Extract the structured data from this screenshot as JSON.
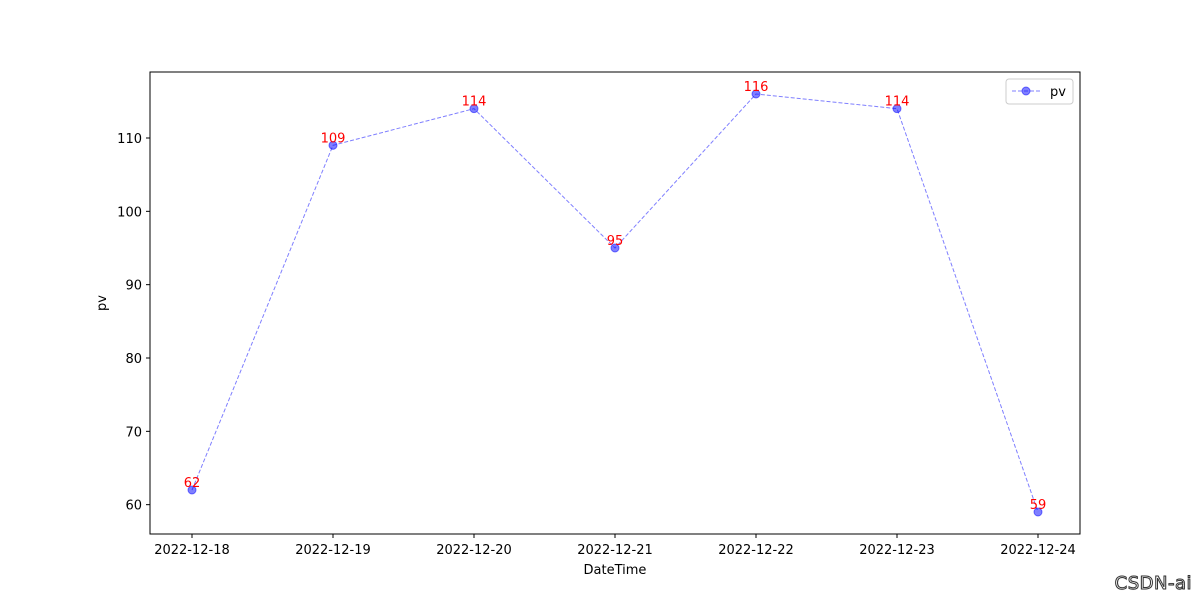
{
  "chart_data": {
    "type": "line",
    "x": [
      "2022-12-18",
      "2022-12-19",
      "2022-12-20",
      "2022-12-21",
      "2022-12-22",
      "2022-12-23",
      "2022-12-24"
    ],
    "series": [
      {
        "name": "pv",
        "values": [
          62,
          109,
          114,
          95,
          116,
          114,
          59
        ],
        "color": "#0000ff",
        "line_style": "dashed",
        "marker": "circle",
        "alpha": 0.5
      }
    ],
    "data_labels": [
      "62",
      "109",
      "114",
      "95",
      "116",
      "114",
      "59"
    ],
    "data_label_color": "#ff0000",
    "title": "",
    "xlabel": "DateTime",
    "ylabel": "pv",
    "ylim": [
      56,
      119
    ],
    "yticks": [
      60,
      70,
      80,
      90,
      100,
      110
    ],
    "grid": false,
    "legend_position": "top-right"
  },
  "watermark": "CSDN-ai"
}
